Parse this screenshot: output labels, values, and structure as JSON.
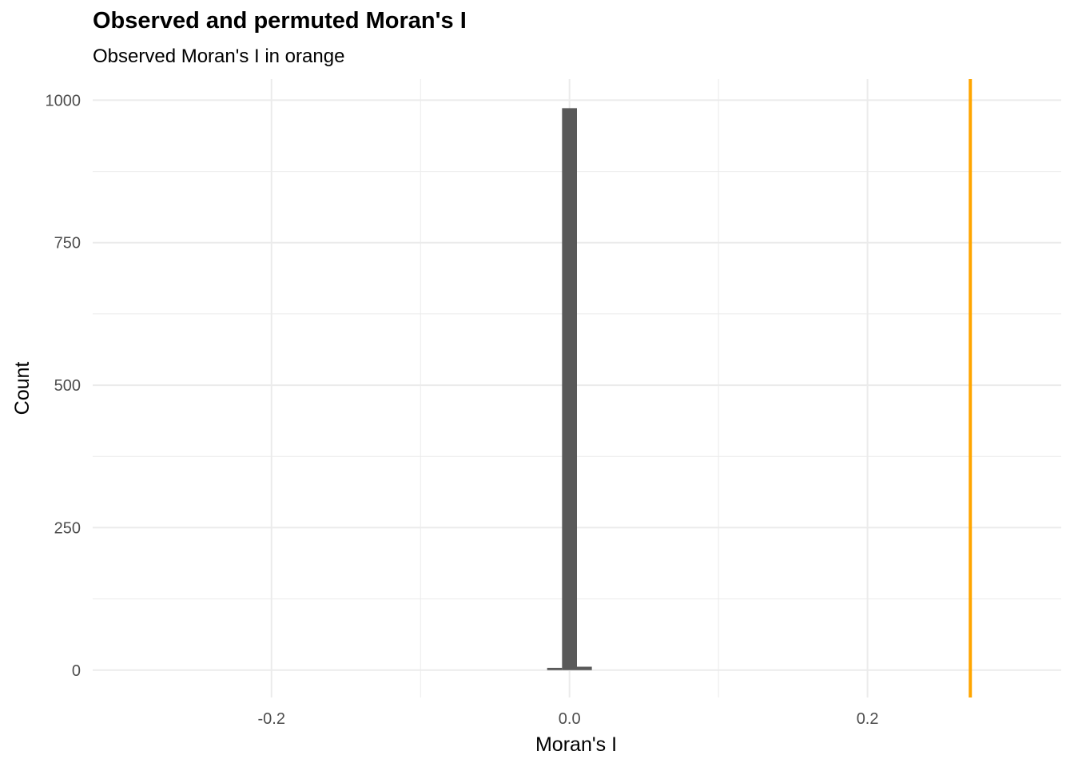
{
  "chart_data": {
    "type": "bar",
    "title": "Observed and permuted Moran's I",
    "subtitle": "Observed Moran's I in orange",
    "xlabel": "Moran's I",
    "ylabel": "Count",
    "xlim": [
      -0.32,
      0.33
    ],
    "ylim": [
      -48,
      1037
    ],
    "x_ticks": [
      -0.2,
      0.0,
      0.2
    ],
    "x_tick_labels": [
      "-0.2",
      "0.0",
      "0.2"
    ],
    "y_ticks": [
      0,
      250,
      500,
      750,
      1000
    ],
    "y_tick_labels": [
      "0",
      "250",
      "500",
      "750",
      "1000"
    ],
    "bins": [
      {
        "x0": -0.015,
        "x1": -0.005,
        "count": 4
      },
      {
        "x0": -0.005,
        "x1": 0.005,
        "count": 986
      },
      {
        "x0": 0.005,
        "x1": 0.015,
        "count": 6
      }
    ],
    "observed_value": 0.269,
    "grid": true,
    "colors": {
      "bars": "#595959",
      "observed": "#FFA500",
      "grid": "#ebebeb"
    }
  }
}
